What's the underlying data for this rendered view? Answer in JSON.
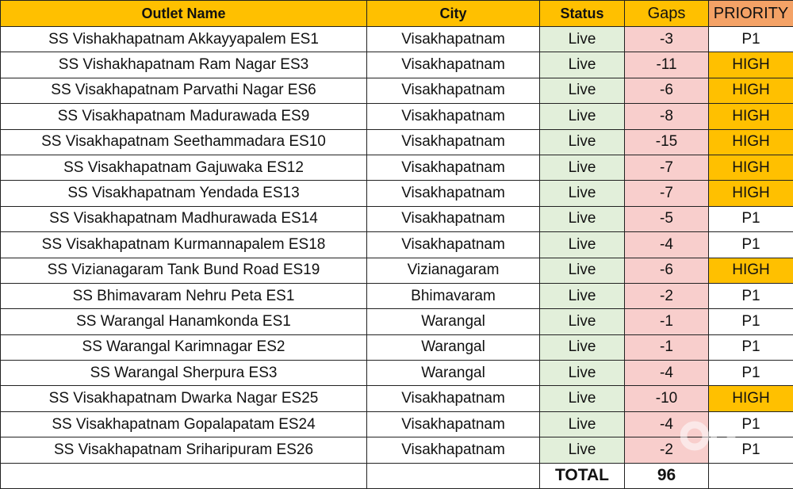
{
  "headers": [
    "Outlet Name",
    "City",
    "Status",
    "Gaps",
    "PRIORITY"
  ],
  "rows": [
    [
      "SS Vishakhapatnam Akkayyapalem ES1",
      "Visakhapatnam",
      "Live",
      "-3",
      "P1"
    ],
    [
      "SS Vishakhapatnam Ram Nagar ES3",
      "Visakhapatnam",
      "Live",
      "-11",
      "HIGH"
    ],
    [
      "SS Visakhapatnam Parvathi Nagar ES6",
      "Visakhapatnam",
      "Live",
      "-6",
      "HIGH"
    ],
    [
      "SS Visakhapatnam Madurawada ES9",
      "Visakhapatnam",
      "Live",
      "-8",
      "HIGH"
    ],
    [
      "SS Visakhapatnam Seethammadara ES10",
      "Visakhapatnam",
      "Live",
      "-15",
      "HIGH"
    ],
    [
      "SS Visakhapatnam Gajuwaka ES12",
      "Visakhapatnam",
      "Live",
      "-7",
      "HIGH"
    ],
    [
      "SS Visakhapatnam Yendada ES13",
      "Visakhapatnam",
      "Live",
      "-7",
      "HIGH"
    ],
    [
      "SS Visakhapatnam Madhurawada ES14",
      "Visakhapatnam",
      "Live",
      "-5",
      "P1"
    ],
    [
      "SS Visakhapatnam Kurmannapalem ES18",
      "Visakhapatnam",
      "Live",
      "-4",
      "P1"
    ],
    [
      "SS Vizianagaram Tank Bund Road ES19",
      "Vizianagaram",
      "Live",
      "-6",
      "HIGH"
    ],
    [
      "SS Bhimavaram Nehru Peta ES1",
      "Bhimavaram",
      "Live",
      "-2",
      "P1"
    ],
    [
      "SS Warangal Hanamkonda ES1",
      "Warangal",
      "Live",
      "-1",
      "P1"
    ],
    [
      "SS Warangal Karimnagar ES2",
      "Warangal",
      "Live",
      "-1",
      "P1"
    ],
    [
      "SS Warangal Sherpura ES3",
      "Warangal",
      "Live",
      "-4",
      "P1"
    ],
    [
      "SS Visakhapatnam Dwarka Nagar ES25",
      "Visakhapatnam",
      "Live",
      "-10",
      "HIGH"
    ],
    [
      "SS Visakhapatnam Gopalapatam ES24",
      "Visakhapatnam",
      "Live",
      "-4",
      "P1"
    ],
    [
      "SS Visakhapatnam Sriharipuram ES26",
      "Visakhapatnam",
      "Live",
      "-2",
      "P1"
    ]
  ],
  "total": {
    "label": "TOTAL",
    "value": "96"
  },
  "watermark": "olx",
  "colors": {
    "header": "#FFC000",
    "priority_header": "#F4A266",
    "status": "#E2EFDA",
    "gaps": "#F8CECC",
    "high": "#FFC000"
  }
}
